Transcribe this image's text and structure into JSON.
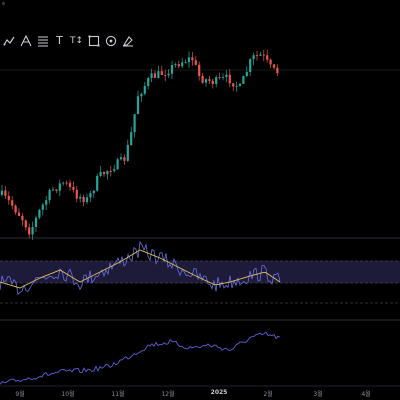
{
  "toolbar": {
    "tools": [
      {
        "icon": "trendline-icon",
        "glyph": ""
      },
      {
        "icon": "pitchfork-icon",
        "glyph": ""
      },
      {
        "icon": "horizontal-lines-icon",
        "glyph": ""
      },
      {
        "icon": "text-tool-icon",
        "glyph": "T"
      },
      {
        "icon": "text-size-icon",
        "glyph": "T↕"
      },
      {
        "icon": "rectangle-icon",
        "glyph": ""
      },
      {
        "icon": "target-icon",
        "glyph": ""
      },
      {
        "icon": "eraser-icon",
        "glyph": ""
      }
    ]
  },
  "x_axis": {
    "labels": [
      "9월",
      "10월",
      "11월",
      "12월",
      "2025",
      "2월",
      "3월",
      "4월"
    ],
    "bold_label": "2025"
  },
  "colors": {
    "background": "#000000",
    "up": "#26a69a",
    "down": "#ef5350",
    "rsi_line": "#6a6fe0",
    "rsi_ma": "#e0c060",
    "rsi_band": "#1e1a3a",
    "indicator_line": "#5a5fd8",
    "separator": "#2a2e39"
  }
}
